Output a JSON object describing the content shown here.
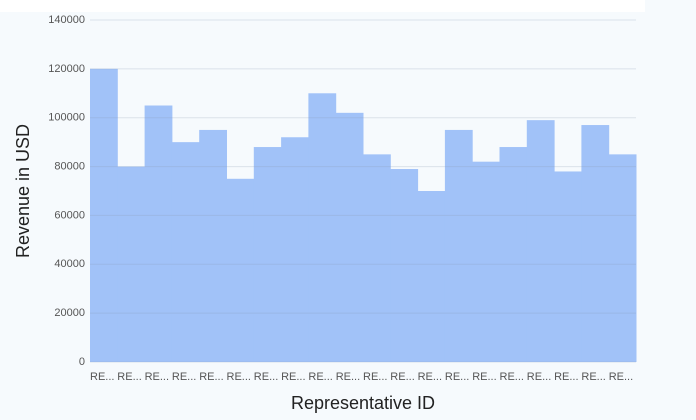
{
  "chart_data": {
    "type": "bar",
    "x_label": "Representative ID",
    "y_label": "Revenue in USD",
    "categories": [
      "RE...",
      "RE...",
      "RE...",
      "RE...",
      "RE...",
      "RE...",
      "RE...",
      "RE...",
      "RE...",
      "RE...",
      "RE...",
      "RE...",
      "RE...",
      "RE...",
      "RE...",
      "RE...",
      "RE...",
      "RE...",
      "RE...",
      "RE..."
    ],
    "values": [
      120000,
      80000,
      105000,
      90000,
      95000,
      75000,
      88000,
      92000,
      110000,
      102000,
      85000,
      79000,
      70000,
      95000,
      82000,
      88000,
      99000,
      78000,
      97000,
      85000
    ],
    "color": "#a1c2f8",
    "ylim": [
      0,
      140000
    ],
    "yticks": [
      0,
      20000,
      40000,
      60000,
      80000,
      100000,
      120000,
      140000
    ],
    "grid": true
  }
}
